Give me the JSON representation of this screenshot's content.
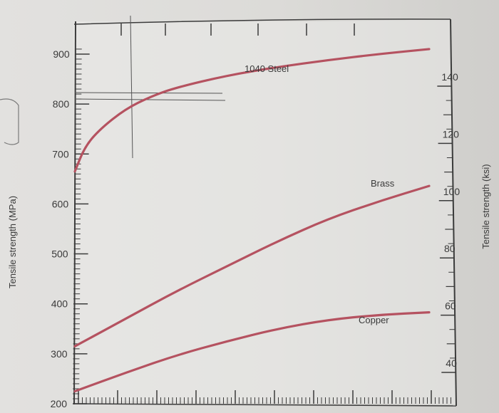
{
  "chart_data": {
    "type": "line",
    "title": "",
    "xlabel": "",
    "ylabel": "Tensile strength (MPa)",
    "ylabel_right": "Tensile strength (ksi)",
    "ylim": [
      200,
      960
    ],
    "y_ticks": [
      "200",
      "300",
      "400",
      "500",
      "600",
      "700",
      "800",
      "900"
    ],
    "y_right_ticks": [
      "40",
      "60",
      "80",
      "100",
      "120",
      "140"
    ],
    "grid": false,
    "series": [
      {
        "name": "1040 Steel",
        "color": "#b55260",
        "x": [
          0,
          2,
          5,
          10,
          15,
          20,
          30,
          40,
          50,
          60,
          70
        ],
        "y": [
          665,
          715,
          750,
          790,
          815,
          833,
          857,
          874,
          888,
          900,
          910
        ]
      },
      {
        "name": "Brass",
        "color": "#b55260",
        "x": [
          0,
          10,
          20,
          30,
          40,
          50,
          60,
          70
        ],
        "y": [
          315,
          370,
          425,
          475,
          525,
          570,
          605,
          636
        ]
      },
      {
        "name": "Copper",
        "color": "#b55260",
        "x": [
          0,
          10,
          20,
          30,
          40,
          50,
          60,
          70
        ],
        "y": [
          225,
          262,
          297,
          325,
          350,
          368,
          378,
          383
        ]
      }
    ]
  }
}
